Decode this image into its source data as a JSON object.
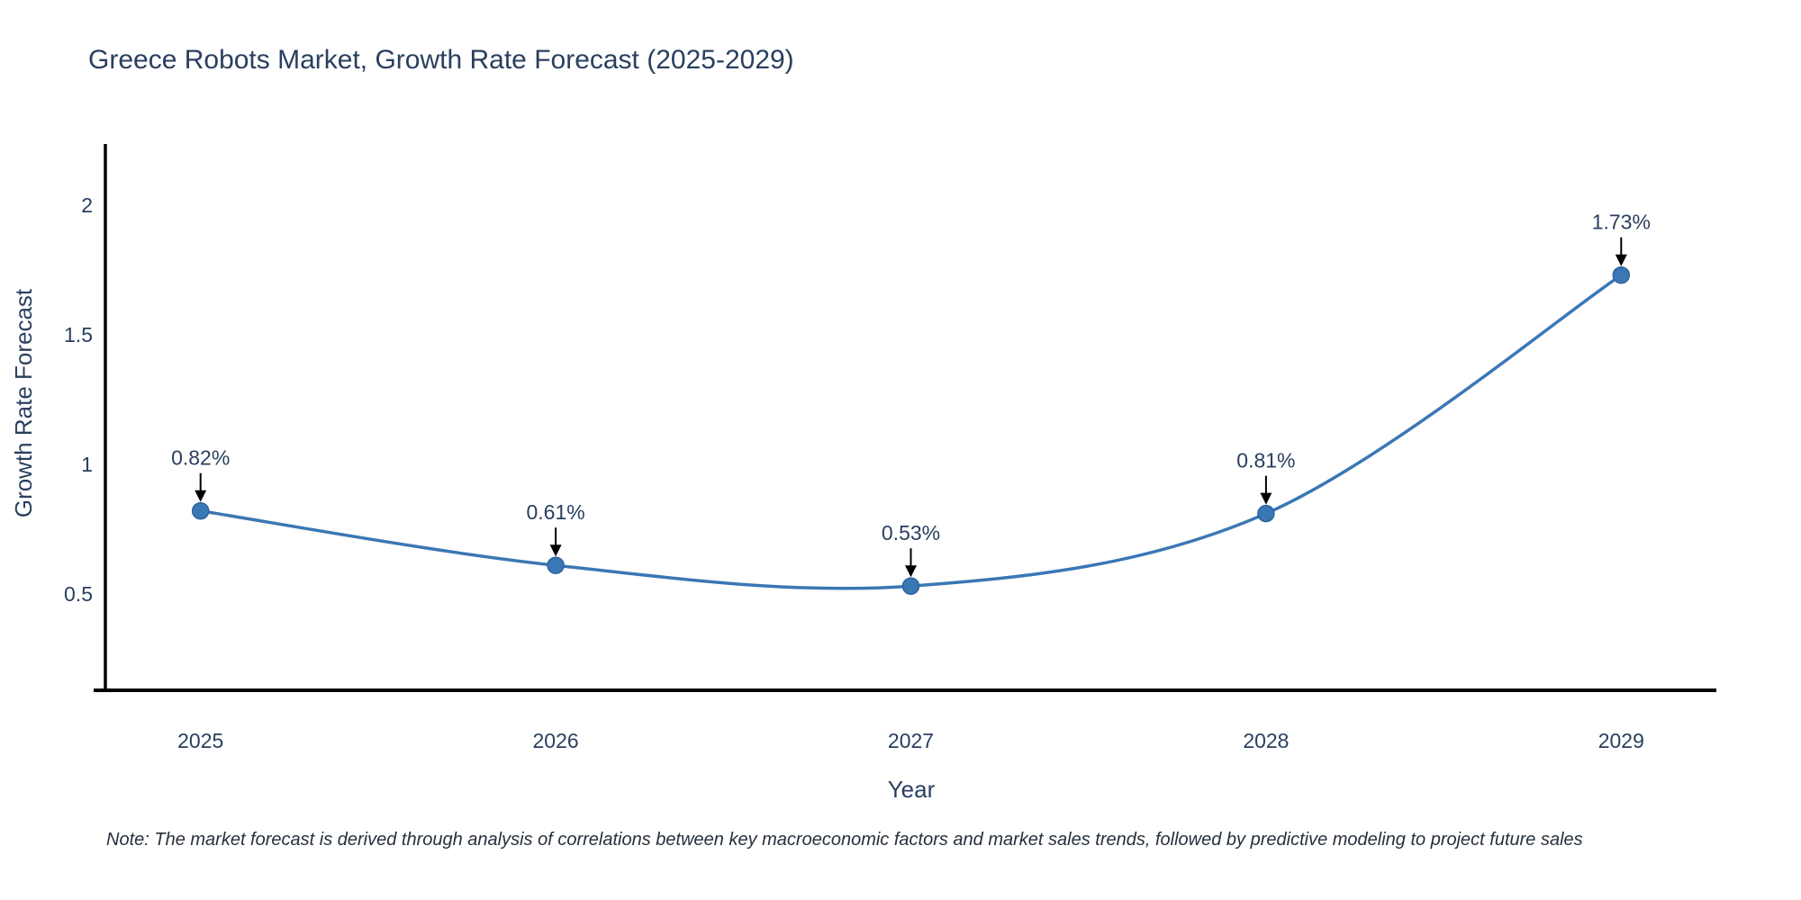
{
  "title": "Greece Robots Market, Growth Rate Forecast (2025-2029)",
  "note": "Note: The market forecast is derived through analysis of correlations between key macroeconomic factors and market sales trends, followed by predictive modeling to project future sales",
  "colors": {
    "line": "#3a77b5",
    "marker": "#3a77b5",
    "marker_edge": "#2e639f",
    "axis": "#000000",
    "arrow": "#000000",
    "text": "#2a3f5f"
  },
  "chart_data": {
    "type": "line",
    "title": "Greece Robots Market, Growth Rate Forecast (2025-2029)",
    "x": [
      2025,
      2026,
      2027,
      2028,
      2029
    ],
    "y": [
      0.82,
      0.61,
      0.53,
      0.81,
      1.73
    ],
    "labels": [
      "0.82%",
      "0.61%",
      "0.53%",
      "0.81%",
      "1.73%"
    ],
    "xlabel": "Year",
    "ylabel": "Growth Rate Forecast",
    "yticks": [
      0.5,
      1,
      1.5,
      2
    ],
    "xlim": [
      2024.732,
      2029.268
    ],
    "ylim": [
      0.128,
      2.236
    ],
    "line_shape": "spline",
    "grid": false,
    "legend": false,
    "annotation_style": "value-label-with-down-arrow"
  }
}
